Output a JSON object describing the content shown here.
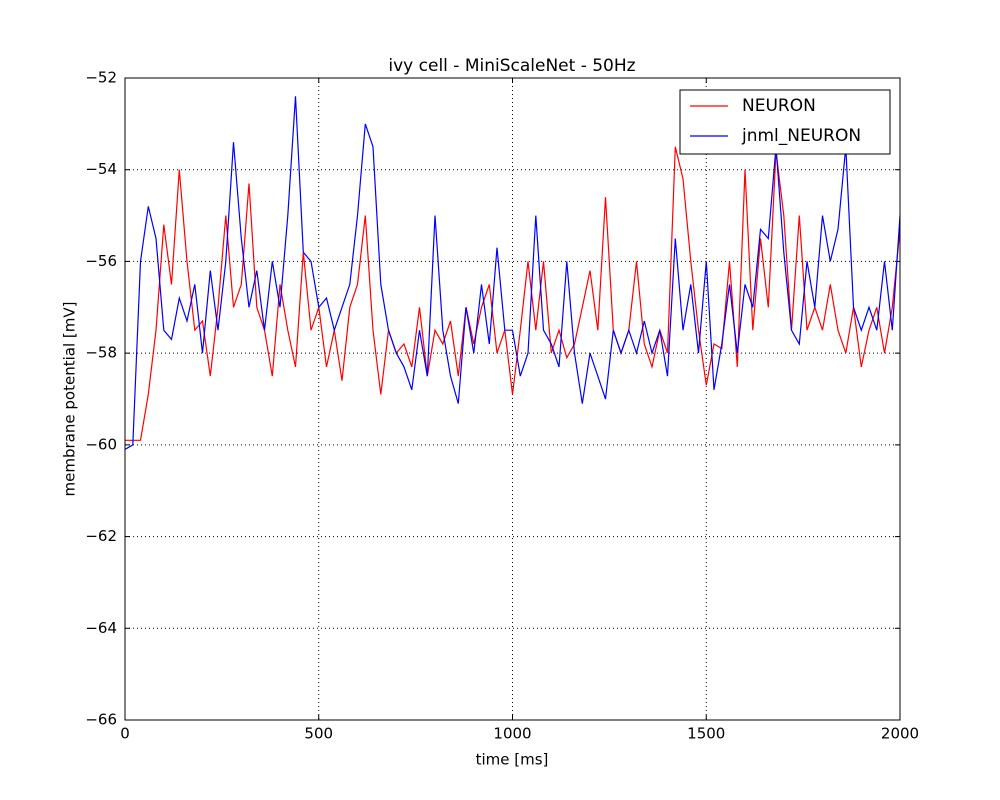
{
  "chart_data": {
    "type": "line",
    "title": "ivy cell - MiniScaleNet - 50Hz",
    "x_label": "time [ms]",
    "y_label": "membrane potential [mV]",
    "x": [
      0,
      20,
      40,
      60,
      80,
      100,
      120,
      140,
      160,
      180,
      200,
      220,
      240,
      260,
      280,
      300,
      320,
      340,
      360,
      380,
      400,
      420,
      440,
      460,
      480,
      500,
      520,
      540,
      560,
      580,
      600,
      620,
      640,
      660,
      680,
      700,
      720,
      740,
      760,
      780,
      800,
      820,
      840,
      860,
      880,
      900,
      920,
      940,
      960,
      980,
      1000,
      1020,
      1040,
      1060,
      1080,
      1100,
      1120,
      1140,
      1160,
      1180,
      1200,
      1220,
      1240,
      1260,
      1280,
      1300,
      1320,
      1340,
      1360,
      1380,
      1400,
      1420,
      1440,
      1460,
      1480,
      1500,
      1520,
      1540,
      1560,
      1580,
      1600,
      1620,
      1640,
      1660,
      1680,
      1700,
      1720,
      1740,
      1760,
      1780,
      1800,
      1820,
      1840,
      1860,
      1880,
      1900,
      1920,
      1940,
      1960,
      1980,
      2000
    ],
    "series": [
      {
        "name": "NEURON",
        "color": "#ff0000",
        "values": [
          -59.9,
          -59.9,
          -59.9,
          -58.9,
          -57.5,
          -55.2,
          -56.5,
          -54.0,
          -56.0,
          -57.5,
          -57.3,
          -58.5,
          -57.0,
          -55.0,
          -57.0,
          -56.5,
          -54.3,
          -57.0,
          -57.5,
          -58.5,
          -56.5,
          -57.5,
          -58.3,
          -55.8,
          -57.5,
          -57.0,
          -58.3,
          -57.5,
          -58.6,
          -57.0,
          -56.5,
          -55.0,
          -57.5,
          -58.9,
          -57.5,
          -58.0,
          -57.8,
          -58.3,
          -57.0,
          -58.5,
          -57.5,
          -57.8,
          -57.3,
          -58.5,
          -57.0,
          -57.8,
          -57.0,
          -56.5,
          -58.0,
          -57.5,
          -58.9,
          -57.5,
          -56.0,
          -57.5,
          -56.0,
          -58.0,
          -57.5,
          -58.1,
          -57.8,
          -57.0,
          -56.2,
          -57.5,
          -54.6,
          -57.5,
          -58.0,
          -57.5,
          -56.0,
          -57.8,
          -58.3,
          -57.5,
          -58.0,
          -53.5,
          -54.2,
          -56.0,
          -57.5,
          -58.7,
          -57.8,
          -57.9,
          -56.0,
          -58.3,
          -54.0,
          -57.5,
          -55.5,
          -57.0,
          -53.6,
          -55.0,
          -57.5,
          -55.0,
          -57.5,
          -57.0,
          -57.5,
          -56.5,
          -57.5,
          -58.0,
          -57.0,
          -58.3,
          -57.5,
          -57.0,
          -58.0,
          -57.0,
          -55.3
        ]
      },
      {
        "name": "jnml_NEURON",
        "color": "#0000ff",
        "values": [
          -60.1,
          -60.0,
          -56.0,
          -54.8,
          -55.5,
          -57.5,
          -57.7,
          -56.8,
          -57.3,
          -56.5,
          -58.0,
          -56.2,
          -57.5,
          -56.0,
          -53.4,
          -55.5,
          -57.0,
          -56.2,
          -57.5,
          -56.0,
          -57.0,
          -55.0,
          -52.4,
          -55.8,
          -56.0,
          -57.0,
          -56.8,
          -57.5,
          -57.0,
          -56.5,
          -55.0,
          -53.0,
          -53.5,
          -56.5,
          -57.5,
          -58.0,
          -58.3,
          -58.8,
          -57.5,
          -58.5,
          -55.0,
          -57.5,
          -58.5,
          -59.1,
          -57.0,
          -58.0,
          -56.5,
          -57.8,
          -55.7,
          -57.5,
          -57.5,
          -58.5,
          -58.0,
          -55.0,
          -57.5,
          -57.8,
          -58.3,
          -56.0,
          -58.0,
          -59.1,
          -58.0,
          -58.5,
          -59.0,
          -57.5,
          -58.0,
          -57.5,
          -58.0,
          -57.3,
          -58.0,
          -57.5,
          -58.5,
          -55.5,
          -57.5,
          -56.5,
          -58.0,
          -56.0,
          -58.8,
          -57.8,
          -56.5,
          -58.0,
          -56.5,
          -57.0,
          -55.3,
          -55.5,
          -53.5,
          -55.8,
          -57.5,
          -57.8,
          -56.0,
          -57.0,
          -55.0,
          -56.0,
          -55.3,
          -53.5,
          -57.0,
          -57.5,
          -57.0,
          -57.5,
          -56.0,
          -57.5,
          -55.0
        ]
      }
    ],
    "xlim": [
      0,
      2000
    ],
    "xticks": [
      0,
      500,
      1000,
      1500,
      2000
    ],
    "ylim": [
      -66,
      -52
    ],
    "yticks": [
      {
        "value": -66,
        "label": "−66"
      },
      {
        "value": -64,
        "label": "−64"
      },
      {
        "value": -62,
        "label": "−62"
      },
      {
        "value": -60,
        "label": "−60"
      },
      {
        "value": -58,
        "label": "−58"
      },
      {
        "value": -56,
        "label": "−56"
      },
      {
        "value": -54,
        "label": "−54"
      },
      {
        "value": -52,
        "label": "−52"
      }
    ],
    "grid": true,
    "legend": "upper-right"
  }
}
